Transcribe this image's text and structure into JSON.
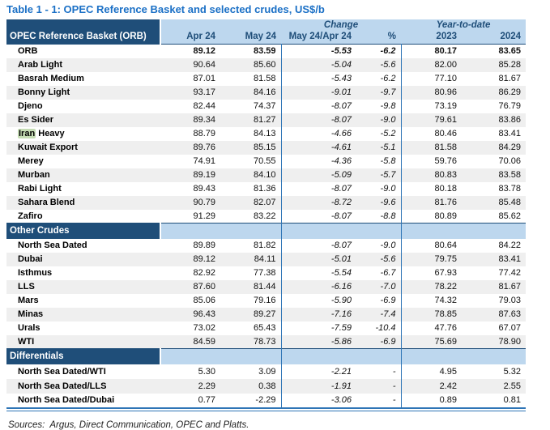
{
  "title": "Table 1 - 1: OPEC Reference Basket and selected crudes, US$/b",
  "sources": "Sources:  Argus, Direct Communication, OPEC and Platts.",
  "colors": {
    "title_blue": "#1B70C6",
    "dark_blue": "#1F4E79",
    "light_blue": "#BDD7EE",
    "border_blue": "#2E75B6",
    "stripe_gray": "#EFEFEF",
    "highlight_green": "#C6DDB5"
  },
  "chart_data": {
    "type": "table",
    "header": {
      "corner_label": "OPEC Reference Basket (ORB)",
      "group_headers": [
        {
          "label": "Change",
          "span": 2
        },
        {
          "label": "Year-to-date",
          "span": 2
        }
      ],
      "columns": [
        "Apr 24",
        "May 24",
        "May 24/Apr 24",
        "%",
        "2023",
        "2024"
      ]
    },
    "sections": [
      {
        "name": null,
        "rows": [
          {
            "label": "ORB",
            "bold": true,
            "values": [
              "89.12",
              "83.59",
              "-5.53",
              "-6.2",
              "80.17",
              "83.65"
            ]
          },
          {
            "label": "Arab Light",
            "values": [
              "90.64",
              "85.60",
              "-5.04",
              "-5.6",
              "82.00",
              "85.28"
            ]
          },
          {
            "label": "Basrah Medium",
            "values": [
              "87.01",
              "81.58",
              "-5.43",
              "-6.2",
              "77.10",
              "81.67"
            ]
          },
          {
            "label": "Bonny Light",
            "values": [
              "93.17",
              "84.16",
              "-9.01",
              "-9.7",
              "80.96",
              "86.29"
            ]
          },
          {
            "label": "Djeno",
            "values": [
              "82.44",
              "74.37",
              "-8.07",
              "-9.8",
              "73.19",
              "76.79"
            ]
          },
          {
            "label": "Es Sider",
            "values": [
              "89.34",
              "81.27",
              "-8.07",
              "-9.0",
              "79.61",
              "83.86"
            ]
          },
          {
            "label": "Iran Heavy",
            "highlight": "Iran",
            "values": [
              "88.79",
              "84.13",
              "-4.66",
              "-5.2",
              "80.46",
              "83.41"
            ]
          },
          {
            "label": "Kuwait Export",
            "values": [
              "89.76",
              "85.15",
              "-4.61",
              "-5.1",
              "81.58",
              "84.29"
            ]
          },
          {
            "label": "Merey",
            "values": [
              "74.91",
              "70.55",
              "-4.36",
              "-5.8",
              "59.76",
              "70.06"
            ]
          },
          {
            "label": "Murban",
            "values": [
              "89.19",
              "84.10",
              "-5.09",
              "-5.7",
              "80.83",
              "83.58"
            ]
          },
          {
            "label": "Rabi Light",
            "values": [
              "89.43",
              "81.36",
              "-8.07",
              "-9.0",
              "80.18",
              "83.78"
            ]
          },
          {
            "label": "Sahara Blend",
            "values": [
              "90.79",
              "82.07",
              "-8.72",
              "-9.6",
              "81.76",
              "85.48"
            ]
          },
          {
            "label": "Zafiro",
            "values": [
              "91.29",
              "83.22",
              "-8.07",
              "-8.8",
              "80.89",
              "85.62"
            ]
          }
        ]
      },
      {
        "name": "Other Crudes",
        "rows": [
          {
            "label": "North Sea Dated",
            "values": [
              "89.89",
              "81.82",
              "-8.07",
              "-9.0",
              "80.64",
              "84.22"
            ]
          },
          {
            "label": "Dubai",
            "values": [
              "89.12",
              "84.11",
              "-5.01",
              "-5.6",
              "79.75",
              "83.41"
            ]
          },
          {
            "label": "Isthmus",
            "values": [
              "82.92",
              "77.38",
              "-5.54",
              "-6.7",
              "67.93",
              "77.42"
            ]
          },
          {
            "label": "LLS",
            "values": [
              "87.60",
              "81.44",
              "-6.16",
              "-7.0",
              "78.22",
              "81.67"
            ]
          },
          {
            "label": "Mars",
            "values": [
              "85.06",
              "79.16",
              "-5.90",
              "-6.9",
              "74.32",
              "79.03"
            ]
          },
          {
            "label": "Minas",
            "values": [
              "96.43",
              "89.27",
              "-7.16",
              "-7.4",
              "78.85",
              "87.63"
            ]
          },
          {
            "label": "Urals",
            "values": [
              "73.02",
              "65.43",
              "-7.59",
              "-10.4",
              "47.76",
              "67.07"
            ]
          },
          {
            "label": "WTI",
            "values": [
              "84.59",
              "78.73",
              "-5.86",
              "-6.9",
              "75.69",
              "78.90"
            ]
          }
        ]
      },
      {
        "name": "Differentials",
        "rows": [
          {
            "label": "North Sea Dated/WTI",
            "values": [
              "5.30",
              "3.09",
              "-2.21",
              "-",
              "4.95",
              "5.32"
            ]
          },
          {
            "label": "North Sea Dated/LLS",
            "values": [
              "2.29",
              "0.38",
              "-1.91",
              "-",
              "2.42",
              "2.55"
            ]
          },
          {
            "label": "North Sea Dated/Dubai",
            "values": [
              "0.77",
              "-2.29",
              "-3.06",
              "-",
              "0.89",
              "0.81"
            ]
          }
        ]
      }
    ]
  }
}
